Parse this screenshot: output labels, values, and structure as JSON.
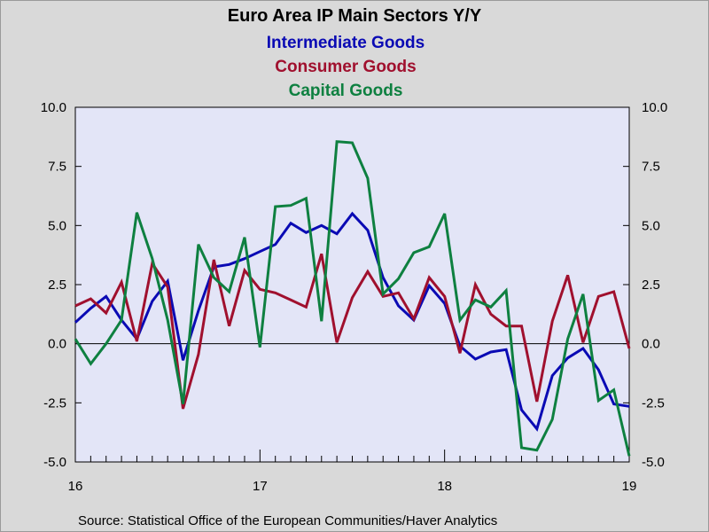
{
  "chart_data": {
    "type": "line",
    "title": "Euro Area IP Main Sectors Y/Y",
    "source": "Source:  Statistical Office of the European Communities/Haver Analytics",
    "ylim": [
      -5,
      10
    ],
    "yticks": [
      10.0,
      7.5,
      5.0,
      2.5,
      0.0,
      -2.5,
      -5.0
    ],
    "ytick_labels": [
      "10.0",
      "7.5",
      "5.0",
      "2.5",
      "0.0",
      "-2.5",
      "-5.0"
    ],
    "xlim": [
      2016.0,
      2019.0
    ],
    "xtick_labels": [
      "16",
      "17",
      "18",
      "19"
    ],
    "xtick_years": [
      2016,
      2017,
      2018,
      2019
    ],
    "x_start": "2016-01",
    "grid": false,
    "zero_line": true,
    "series": [
      {
        "name": "Intermediate Goods",
        "color": "#0a0ab4",
        "values": [
          0.9,
          1.5,
          2.0,
          1.0,
          0.2,
          1.8,
          2.65,
          -0.7,
          1.4,
          3.25,
          3.35,
          3.6,
          3.9,
          4.2,
          5.1,
          4.7,
          5.0,
          4.65,
          5.5,
          4.8,
          2.8,
          1.6,
          1.0,
          2.45,
          1.7,
          -0.1,
          -0.65,
          -0.35,
          -0.25,
          -2.8,
          -3.6,
          -1.35,
          -0.6,
          -0.2,
          -1.1,
          -2.55,
          -2.65
        ]
      },
      {
        "name": "Consumer Goods",
        "color": "#a0102e",
        "values": [
          1.6,
          1.9,
          1.3,
          2.6,
          0.1,
          3.4,
          2.4,
          -2.75,
          -0.45,
          3.55,
          0.75,
          3.1,
          2.3,
          2.15,
          1.85,
          1.55,
          3.8,
          0.05,
          1.95,
          3.05,
          2.0,
          2.15,
          1.05,
          2.8,
          2.0,
          -0.4,
          2.5,
          1.25,
          0.75,
          0.75,
          -2.45,
          0.95,
          2.9,
          0.05,
          2.0,
          2.2,
          -0.2
        ]
      },
      {
        "name": "Capital Goods",
        "color": "#0e8040",
        "values": [
          0.2,
          -0.85,
          0.0,
          1.0,
          5.55,
          3.6,
          1.0,
          -2.55,
          4.2,
          2.8,
          2.2,
          4.5,
          -0.15,
          5.8,
          5.85,
          6.15,
          0.95,
          8.55,
          8.5,
          7.0,
          2.1,
          2.75,
          3.85,
          4.1,
          5.5,
          1.0,
          1.85,
          1.55,
          2.25,
          -4.4,
          -4.5,
          -3.2,
          0.2,
          2.1,
          -2.4,
          -1.95,
          -4.75
        ]
      }
    ]
  }
}
